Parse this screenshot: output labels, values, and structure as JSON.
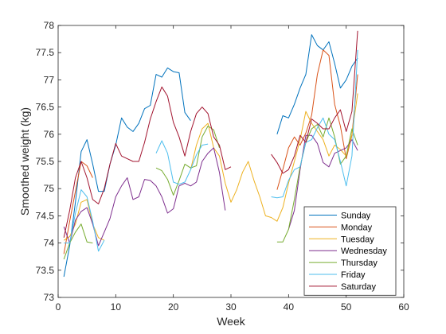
{
  "chart_data": {
    "type": "line",
    "xlabel": "Week",
    "ylabel": "Smoothed weight (kg)",
    "xlim": [
      0,
      60
    ],
    "ylim": [
      73,
      78
    ],
    "xticks": [
      "0",
      "10",
      "20",
      "30",
      "40",
      "50",
      "60"
    ],
    "yticks": [
      "73",
      "73.5",
      "74",
      "74.5",
      "75",
      "75.5",
      "76",
      "76.5",
      "77",
      "77.5",
      "78"
    ],
    "grid": false,
    "legend_position": "bottom-right",
    "series": [
      {
        "name": "Sunday",
        "color": "#0072BD",
        "segments": [
          [
            [
              1,
              73.38
            ],
            [
              2,
              73.95
            ],
            [
              3,
              74.75
            ],
            [
              4,
              75.68
            ],
            [
              5,
              75.9
            ],
            [
              6,
              75.45
            ],
            [
              7,
              74.95
            ],
            [
              8,
              74.95
            ],
            [
              9,
              75.45
            ],
            [
              10,
              75.8
            ],
            [
              11,
              76.3
            ],
            [
              12,
              76.13
            ],
            [
              13,
              76.05
            ],
            [
              14,
              76.2
            ],
            [
              15,
              76.47
            ],
            [
              16,
              76.53
            ],
            [
              17,
              77.1
            ],
            [
              18,
              77.05
            ],
            [
              19,
              77.22
            ],
            [
              20,
              77.15
            ],
            [
              21,
              77.13
            ],
            [
              22,
              76.4
            ],
            [
              23,
              76.25
            ]
          ],
          [
            [
              38,
              76.0
            ],
            [
              39,
              76.34
            ],
            [
              40,
              76.3
            ],
            [
              41,
              76.55
            ],
            [
              42,
              76.85
            ],
            [
              43,
              77.1
            ],
            [
              44,
              77.83
            ],
            [
              45,
              77.63
            ],
            [
              46,
              77.55
            ],
            [
              47,
              77.7
            ],
            [
              48,
              77.3
            ],
            [
              49,
              76.85
            ],
            [
              50,
              77.0
            ],
            [
              51,
              77.25
            ],
            [
              52,
              77.4
            ]
          ]
        ]
      },
      {
        "name": "Monday",
        "color": "#D95319",
        "segments": [
          [
            [
              1,
              73.8
            ],
            [
              2,
              74.4
            ],
            [
              3,
              74.95
            ],
            [
              4,
              75.5
            ],
            [
              5,
              75.42
            ],
            [
              6,
              75.2
            ]
          ],
          [
            [
              38,
              74.98
            ],
            [
              39,
              75.35
            ],
            [
              40,
              75.75
            ],
            [
              41,
              75.95
            ],
            [
              42,
              75.8
            ],
            [
              43,
              76.02
            ],
            [
              44,
              76.35
            ],
            [
              45,
              77.1
            ],
            [
              46,
              77.55
            ],
            [
              47,
              77.45
            ],
            [
              48,
              76.55
            ],
            [
              49,
              76.15
            ],
            [
              50,
              75.55
            ],
            [
              51,
              75.98
            ],
            [
              52,
              77.1
            ]
          ]
        ]
      },
      {
        "name": "Tuesday",
        "color": "#EDB120",
        "segments": [
          [
            [
              1,
              74.05
            ],
            [
              2,
              74.12
            ],
            [
              3,
              74.35
            ],
            [
              4,
              74.75
            ],
            [
              5,
              74.8
            ],
            [
              6,
              74.35
            ],
            [
              7,
              74.1
            ],
            [
              8,
              74.05
            ]
          ],
          [
            [
              23,
              75.35
            ],
            [
              24,
              75.8
            ],
            [
              25,
              76.1
            ],
            [
              26,
              76.2
            ],
            [
              27,
              75.75
            ],
            [
              28,
              75.6
            ],
            [
              29,
              75.1
            ],
            [
              30,
              74.75
            ],
            [
              31,
              74.98
            ],
            [
              32,
              75.3
            ],
            [
              33,
              75.5
            ],
            [
              34,
              75.15
            ],
            [
              35,
              74.85
            ],
            [
              36,
              74.5
            ],
            [
              37,
              74.47
            ],
            [
              38,
              74.4
            ],
            [
              39,
              74.65
            ],
            [
              40,
              75.1
            ],
            [
              41,
              75.5
            ],
            [
              42,
              75.9
            ],
            [
              43,
              76.42
            ],
            [
              44,
              76.2
            ],
            [
              45,
              76.05
            ],
            [
              46,
              75.9
            ],
            [
              47,
              75.6
            ],
            [
              48,
              75.8
            ],
            [
              49,
              75.72
            ],
            [
              50,
              75.6
            ],
            [
              51,
              76.0
            ],
            [
              52,
              76.75
            ]
          ]
        ]
      },
      {
        "name": "Wednesday",
        "color": "#7E2F8E",
        "segments": [
          [
            [
              1,
              74.3
            ],
            [
              2,
              74.0
            ],
            [
              3,
              74.42
            ],
            [
              4,
              74.58
            ],
            [
              5,
              74.65
            ],
            [
              6,
              74.35
            ],
            [
              7,
              73.95
            ],
            [
              8,
              74.2
            ],
            [
              9,
              74.45
            ],
            [
              10,
              74.85
            ],
            [
              11,
              75.05
            ],
            [
              12,
              75.2
            ],
            [
              13,
              74.8
            ],
            [
              14,
              74.85
            ],
            [
              15,
              75.17
            ],
            [
              16,
              75.15
            ],
            [
              17,
              75.05
            ],
            [
              18,
              74.85
            ],
            [
              19,
              74.55
            ],
            [
              20,
              74.63
            ],
            [
              21,
              75.05
            ],
            [
              22,
              75.1
            ],
            [
              23,
              75.05
            ],
            [
              24,
              75.12
            ],
            [
              25,
              75.5
            ],
            [
              26,
              75.65
            ],
            [
              27,
              75.75
            ],
            [
              28,
              75.3
            ],
            [
              29,
              74.6
            ]
          ],
          [
            [
              40,
              74.25
            ],
            [
              41,
              74.6
            ],
            [
              42,
              75.35
            ],
            [
              43,
              75.98
            ],
            [
              44,
              75.98
            ],
            [
              45,
              75.83
            ],
            [
              46,
              75.48
            ],
            [
              47,
              75.4
            ],
            [
              48,
              75.65
            ],
            [
              49,
              75.7
            ],
            [
              50,
              75.75
            ],
            [
              51,
              75.9
            ],
            [
              52,
              75.7
            ]
          ]
        ]
      },
      {
        "name": "Thursday",
        "color": "#77AC30",
        "segments": [
          [
            [
              1,
              73.7
            ],
            [
              2,
              74.0
            ],
            [
              3,
              74.2
            ],
            [
              4,
              74.35
            ],
            [
              5,
              74.02
            ],
            [
              6,
              74.0
            ]
          ],
          [
            [
              17,
              75.38
            ],
            [
              18,
              75.33
            ],
            [
              19,
              75.17
            ],
            [
              20,
              74.88
            ],
            [
              21,
              75.15
            ],
            [
              22,
              75.45
            ],
            [
              23,
              75.38
            ],
            [
              24,
              75.42
            ],
            [
              25,
              75.95
            ],
            [
              26,
              76.15
            ],
            [
              27,
              76.08
            ],
            [
              28,
              75.75
            ]
          ],
          [
            [
              38,
              74.02
            ],
            [
              39,
              74.02
            ],
            [
              40,
              74.25
            ],
            [
              41,
              74.8
            ],
            [
              42,
              75.4
            ],
            [
              43,
              75.85
            ],
            [
              44,
              76.1
            ],
            [
              45,
              76.18
            ],
            [
              46,
              75.95
            ],
            [
              47,
              76.3
            ],
            [
              48,
              75.95
            ],
            [
              49,
              75.45
            ],
            [
              50,
              75.6
            ],
            [
              51,
              76.1
            ],
            [
              52,
              75.8
            ]
          ]
        ]
      },
      {
        "name": "Friday",
        "color": "#4DBEEE",
        "segments": [
          [
            [
              1,
              74.0
            ],
            [
              2,
              74.0
            ],
            [
              3,
              74.55
            ],
            [
              4,
              74.98
            ],
            [
              5,
              74.85
            ],
            [
              6,
              74.4
            ],
            [
              7,
              73.85
            ],
            [
              8,
              74.05
            ]
          ],
          [
            [
              17,
              75.65
            ],
            [
              18,
              75.88
            ],
            [
              19,
              75.65
            ],
            [
              20,
              75.12
            ],
            [
              21,
              75.08
            ],
            [
              22,
              75.12
            ],
            [
              23,
              75.35
            ],
            [
              24,
              75.62
            ],
            [
              25,
              75.8
            ],
            [
              26,
              75.82
            ]
          ],
          [
            [
              37,
              74.85
            ],
            [
              38,
              74.83
            ],
            [
              39,
              74.85
            ],
            [
              40,
              75.15
            ],
            [
              41,
              75.35
            ],
            [
              42,
              75.4
            ],
            [
              43,
              75.85
            ],
            [
              44,
              75.9
            ],
            [
              45,
              76.12
            ],
            [
              46,
              76.3
            ],
            [
              47,
              76.0
            ],
            [
              48,
              75.9
            ],
            [
              49,
              75.5
            ],
            [
              50,
              75.05
            ],
            [
              51,
              75.6
            ],
            [
              52,
              77.55
            ]
          ]
        ]
      },
      {
        "name": "Saturday",
        "color": "#A2142F",
        "segments": [
          [
            [
              1,
              74.1
            ],
            [
              2,
              74.6
            ],
            [
              3,
              75.2
            ],
            [
              4,
              75.5
            ],
            [
              5,
              75.2
            ],
            [
              6,
              74.8
            ],
            [
              7,
              74.72
            ],
            [
              8,
              75.0
            ],
            [
              9,
              75.45
            ],
            [
              10,
              75.83
            ],
            [
              11,
              75.6
            ],
            [
              12,
              75.55
            ],
            [
              13,
              75.5
            ],
            [
              14,
              75.5
            ],
            [
              15,
              75.85
            ],
            [
              16,
              76.28
            ],
            [
              17,
              76.6
            ],
            [
              18,
              76.87
            ],
            [
              19,
              76.7
            ],
            [
              20,
              76.22
            ],
            [
              21,
              75.95
            ],
            [
              22,
              75.6
            ],
            [
              23,
              76.05
            ],
            [
              24,
              76.38
            ],
            [
              25,
              76.5
            ],
            [
              26,
              76.38
            ],
            [
              27,
              75.95
            ],
            [
              28,
              75.8
            ],
            [
              29,
              75.35
            ],
            [
              30,
              75.4
            ]
          ],
          [
            [
              37,
              75.63
            ],
            [
              38,
              75.48
            ],
            [
              39,
              75.28
            ],
            [
              40,
              75.35
            ],
            [
              41,
              75.6
            ],
            [
              42,
              75.98
            ],
            [
              43,
              75.85
            ],
            [
              44,
              76.28
            ],
            [
              45,
              76.2
            ],
            [
              46,
              76.1
            ],
            [
              47,
              76.1
            ],
            [
              48,
              76.3
            ],
            [
              49,
              76.45
            ],
            [
              50,
              76.05
            ],
            [
              51,
              76.42
            ],
            [
              52,
              77.9
            ]
          ]
        ]
      }
    ]
  }
}
